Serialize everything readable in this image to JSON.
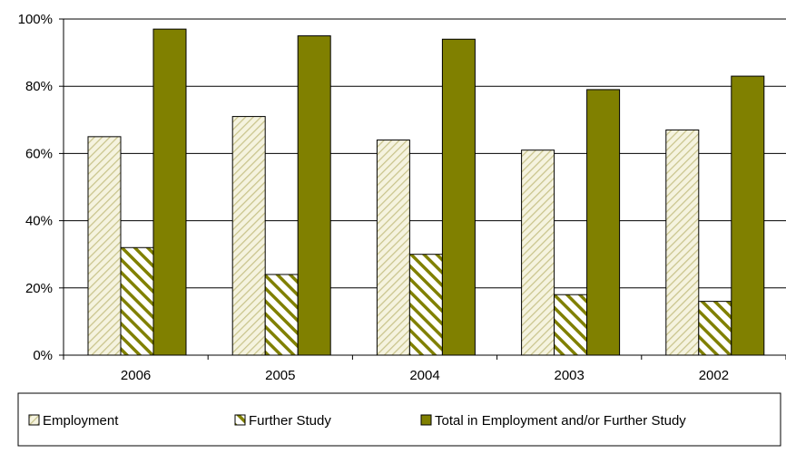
{
  "chart_data": {
    "type": "bar",
    "categories": [
      "2006",
      "2005",
      "2004",
      "2003",
      "2002"
    ],
    "series": [
      {
        "name": "Employment",
        "values": [
          65,
          71,
          64,
          61,
          67
        ],
        "color": "#d9d9a6",
        "pattern": "light-diagonal-stripes"
      },
      {
        "name": "Further Study",
        "values": [
          32,
          24,
          30,
          18,
          16
        ],
        "color": "#808000",
        "pattern": "wide-diagonal-stripes"
      },
      {
        "name": "Total in Employment and/or Further Study",
        "values": [
          97,
          95,
          94,
          79,
          83
        ],
        "color": "#808000",
        "pattern": "solid"
      }
    ],
    "title": "",
    "xlabel": "",
    "ylabel": "",
    "ylim": [
      0,
      100
    ],
    "yticks": [
      0,
      20,
      40,
      60,
      80,
      100
    ],
    "ytick_labels": [
      "0%",
      "20%",
      "40%",
      "60%",
      "80%",
      "100%"
    ],
    "grid": true,
    "legend_position": "bottom"
  }
}
